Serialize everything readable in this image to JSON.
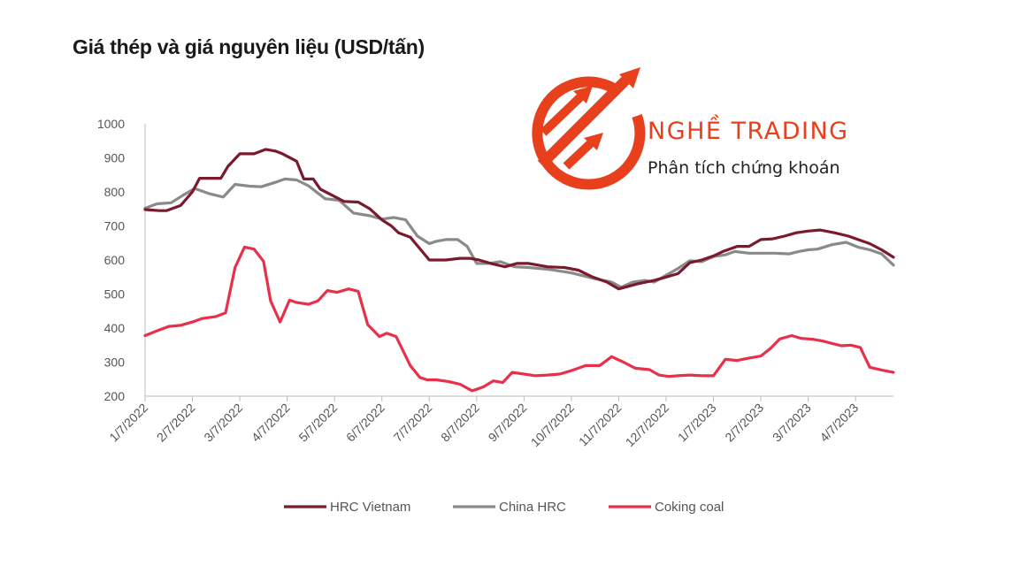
{
  "chart_data": {
    "type": "line",
    "title": "Giá thép và giá nguyên liệu (USD/tấn)",
    "ylim": [
      200,
      1000
    ],
    "yticks": [
      200,
      300,
      400,
      500,
      600,
      700,
      800,
      900,
      1000
    ],
    "xticks": [
      "1/7/2022",
      "2/7/2022",
      "3/7/2022",
      "4/7/2022",
      "5/7/2022",
      "6/7/2022",
      "7/7/2022",
      "8/7/2022",
      "9/7/2022",
      "10/7/2022",
      "11/7/2022",
      "12/7/2022",
      "1/7/2023",
      "2/7/2023",
      "3/7/2023",
      "4/7/2023"
    ],
    "xrange_months": [
      0,
      15.8
    ],
    "grid": false,
    "legend_position": "bottom",
    "series": [
      {
        "name": "HRC Vietnam",
        "color": "#7b1a2c",
        "x": [
          0,
          0.3,
          0.45,
          0.75,
          1.0,
          1.15,
          1.45,
          1.6,
          1.75,
          2.0,
          2.1,
          2.3,
          2.55,
          2.75,
          2.9,
          3.2,
          3.35,
          3.55,
          3.7,
          3.95,
          4.2,
          4.5,
          4.75,
          5.0,
          5.2,
          5.35,
          5.6,
          6.0,
          6.35,
          6.65,
          6.85,
          7.05,
          7.3,
          7.6,
          7.85,
          8.1,
          8.5,
          8.85,
          9.15,
          9.45,
          9.75,
          10.0,
          10.4,
          10.75,
          11.0,
          11.25,
          11.5,
          11.75,
          12.0,
          12.2,
          12.5,
          12.75,
          13.0,
          13.25,
          13.5,
          13.75,
          14.0,
          14.25,
          14.55,
          14.85,
          15.1,
          15.3,
          15.55,
          15.8
        ],
        "y": [
          748,
          745,
          745,
          760,
          800,
          840,
          840,
          840,
          875,
          912,
          912,
          912,
          925,
          920,
          912,
          890,
          838,
          838,
          808,
          790,
          772,
          770,
          750,
          718,
          700,
          680,
          667,
          600,
          600,
          605,
          605,
          600,
          590,
          580,
          590,
          590,
          580,
          578,
          570,
          550,
          535,
          515,
          530,
          540,
          550,
          560,
          592,
          600,
          612,
          625,
          640,
          640,
          660,
          662,
          670,
          680,
          685,
          688,
          680,
          670,
          658,
          648,
          630,
          608
        ]
      },
      {
        "name": "China HRC",
        "color": "#8a8a8a",
        "x": [
          0,
          0.25,
          0.55,
          0.8,
          1.05,
          1.35,
          1.65,
          1.9,
          2.2,
          2.45,
          2.75,
          2.95,
          3.2,
          3.45,
          3.8,
          4.1,
          4.4,
          4.75,
          5.0,
          5.25,
          5.5,
          5.75,
          6.0,
          6.15,
          6.35,
          6.6,
          6.8,
          7.0,
          7.25,
          7.5,
          7.8,
          8.1,
          8.55,
          9.0,
          9.5,
          9.85,
          10.05,
          10.3,
          10.55,
          10.75,
          11.0,
          11.25,
          11.5,
          11.75,
          12.0,
          12.25,
          12.45,
          12.75,
          13.0,
          13.3,
          13.6,
          13.8,
          14.0,
          14.2,
          14.5,
          14.8,
          15.05,
          15.3,
          15.55,
          15.8
        ],
        "y": [
          752,
          765,
          768,
          790,
          810,
          795,
          785,
          822,
          817,
          815,
          828,
          838,
          835,
          818,
          780,
          775,
          738,
          730,
          720,
          725,
          718,
          670,
          648,
          655,
          660,
          660,
          640,
          590,
          590,
          595,
          580,
          578,
          572,
          562,
          545,
          535,
          520,
          535,
          540,
          535,
          555,
          575,
          598,
          595,
          610,
          615,
          625,
          620,
          620,
          620,
          618,
          625,
          630,
          632,
          645,
          652,
          638,
          630,
          618,
          585
        ]
      },
      {
        "name": "Coking coal",
        "color": "#e8304a",
        "x": [
          0,
          0.25,
          0.5,
          0.75,
          1.0,
          1.2,
          1.5,
          1.7,
          1.9,
          2.1,
          2.3,
          2.5,
          2.65,
          2.85,
          3.05,
          3.2,
          3.45,
          3.65,
          3.85,
          4.05,
          4.3,
          4.5,
          4.7,
          4.95,
          5.1,
          5.3,
          5.6,
          5.8,
          5.95,
          6.15,
          6.4,
          6.65,
          6.9,
          7.0,
          7.15,
          7.35,
          7.55,
          7.75,
          8.0,
          8.25,
          8.5,
          8.75,
          9.0,
          9.3,
          9.6,
          9.85,
          10.1,
          10.35,
          10.65,
          10.85,
          11.05,
          11.25,
          11.5,
          11.75,
          12.0,
          12.25,
          12.5,
          12.75,
          13.0,
          13.2,
          13.4,
          13.65,
          13.85,
          14.1,
          14.3,
          14.5,
          14.7,
          14.9,
          15.1,
          15.3,
          15.55,
          15.8
        ],
        "y": [
          378,
          392,
          405,
          408,
          418,
          428,
          434,
          445,
          578,
          638,
          632,
          596,
          480,
          418,
          482,
          475,
          470,
          480,
          510,
          505,
          515,
          508,
          410,
          375,
          385,
          375,
          290,
          255,
          248,
          248,
          243,
          235,
          216,
          220,
          228,
          245,
          240,
          270,
          265,
          260,
          262,
          265,
          275,
          290,
          290,
          316,
          300,
          282,
          278,
          262,
          258,
          260,
          262,
          260,
          260,
          308,
          305,
          312,
          318,
          340,
          368,
          378,
          370,
          367,
          362,
          355,
          348,
          350,
          343,
          285,
          277,
          270
        ]
      }
    ]
  },
  "logo": {
    "title": "NGHỀ TRADING",
    "subtitle": "Phân tích chứng khoán",
    "color": "#e8401c"
  }
}
